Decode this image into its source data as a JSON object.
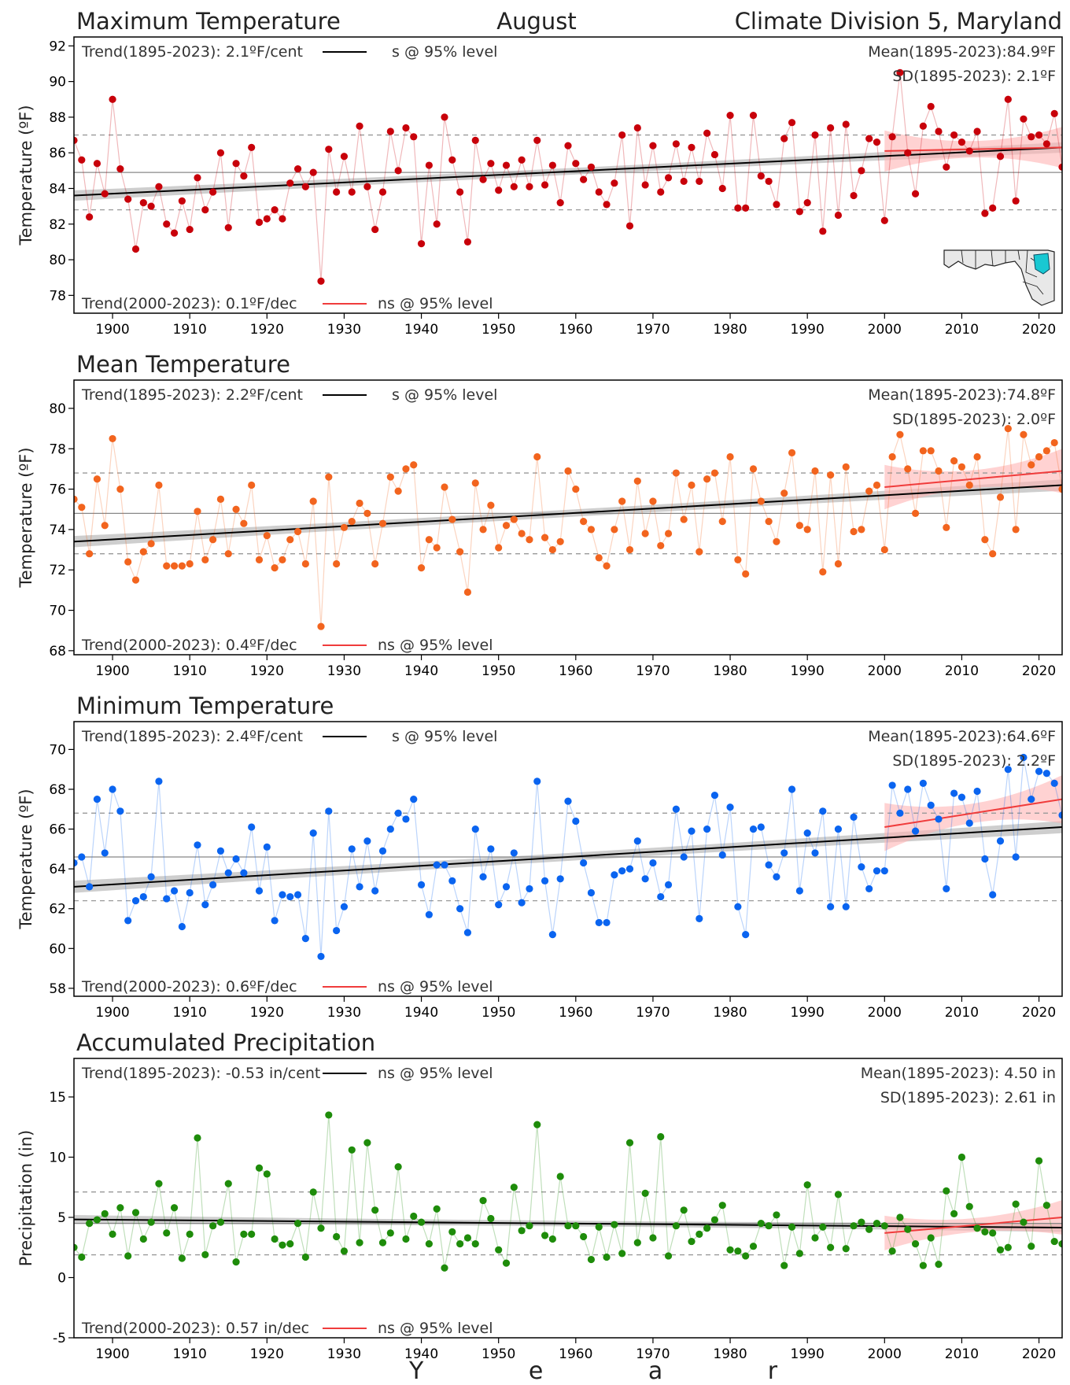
{
  "header": {
    "month": "August",
    "region": "Climate Division 5, Maryland"
  },
  "xaxis_label": "Y e a r",
  "colors": {
    "tmax": "#c8000a",
    "tavg": "#f2641e",
    "tmin": "#0a64f0",
    "pcp": "#1e8c0a",
    "trend_long": "#000000",
    "trend_recent": "#f03c3c",
    "band_long": "#bebebe",
    "band_recent": "#ffb4b4"
  },
  "map": {
    "icon": "maryland-map-icon"
  },
  "chart_data": [
    {
      "id": "tmax",
      "type": "scatter",
      "title": "Maximum Temperature",
      "ylabel": "Temperature (ºF)",
      "xlim": [
        1895,
        2023
      ],
      "ylim": [
        77,
        92.5
      ],
      "yticks": [
        78,
        80,
        82,
        84,
        86,
        88,
        90,
        92
      ],
      "xticks": [
        1900,
        1910,
        1920,
        1930,
        1940,
        1950,
        1960,
        1970,
        1980,
        1990,
        2000,
        2010,
        2020
      ],
      "grid": false,
      "legend": "top-left and bottom-left text lines",
      "mean": 84.9,
      "sd": 2.1,
      "trend_long_text": "Trend(1895-2023):  2.1ºF/cent",
      "trend_long_sig": "s @ 95% level",
      "trend_recent_text": "Trend(2000-2023):  0.1ºF/dec",
      "trend_recent_sig": "ns @ 95% level",
      "mean_text": "Mean(1895-2023):84.9ºF",
      "sd_text": "SD(1895-2023): 2.1ºF",
      "trend_long_line": [
        [
          1895,
          83.6
        ],
        [
          2023,
          86.3
        ]
      ],
      "trend_recent_line": [
        [
          2000,
          86.1
        ],
        [
          2023,
          86.3
        ]
      ],
      "x_start": 1895,
      "values": [
        86.7,
        85.6,
        82.4,
        85.4,
        83.7,
        89.0,
        85.1,
        83.4,
        80.6,
        83.2,
        83.0,
        84.1,
        82.0,
        81.5,
        83.3,
        81.7,
        84.6,
        82.8,
        83.8,
        86.0,
        81.8,
        85.4,
        84.7,
        86.3,
        82.1,
        82.3,
        82.8,
        82.3,
        84.3,
        85.1,
        84.1,
        84.9,
        78.8,
        86.2,
        83.8,
        85.8,
        83.8,
        87.5,
        84.1,
        81.7,
        83.8,
        87.2,
        85.0,
        87.4,
        86.9,
        80.9,
        85.3,
        82.0,
        88.0,
        85.6,
        83.8,
        81.0,
        86.7,
        84.5,
        85.4,
        83.9,
        85.3,
        84.1,
        85.6,
        84.1,
        86.7,
        84.2,
        85.3,
        83.2,
        86.4,
        85.4,
        84.5,
        85.2,
        83.8,
        83.1,
        84.3,
        87.0,
        81.9,
        87.4,
        84.2,
        86.4,
        83.8,
        84.6,
        86.5,
        84.4,
        86.3,
        84.4,
        87.1,
        85.9,
        84.0,
        88.1,
        82.9,
        82.9,
        88.1,
        84.7,
        84.4,
        83.1,
        86.8,
        87.7,
        82.7,
        83.2,
        87.0,
        81.6,
        87.4,
        82.5,
        87.6,
        83.6,
        85.0,
        86.8,
        86.6,
        82.2,
        86.9,
        90.5,
        86.0,
        83.7,
        87.5,
        88.6,
        87.2,
        85.2,
        87.0,
        86.6,
        86.1,
        87.2,
        82.6,
        82.9,
        85.8,
        89.0,
        83.3,
        87.9,
        86.9,
        87.0,
        86.5,
        88.2,
        85.2
      ]
    },
    {
      "id": "tavg",
      "type": "scatter",
      "title": "Mean Temperature",
      "ylabel": "Temperature (ºF)",
      "xlim": [
        1895,
        2023
      ],
      "ylim": [
        67.8,
        81.4
      ],
      "yticks": [
        68,
        70,
        72,
        74,
        76,
        78,
        80
      ],
      "xticks": [
        1900,
        1910,
        1920,
        1930,
        1940,
        1950,
        1960,
        1970,
        1980,
        1990,
        2000,
        2010,
        2020
      ],
      "grid": false,
      "legend": "top-left and bottom-left text lines",
      "mean": 74.8,
      "sd": 2.0,
      "trend_long_text": "Trend(1895-2023):  2.2ºF/cent",
      "trend_long_sig": "s @ 95% level",
      "trend_recent_text": "Trend(2000-2023):  0.4ºF/dec",
      "trend_recent_sig": "ns @ 95% level",
      "mean_text": "Mean(1895-2023):74.8ºF",
      "sd_text": "SD(1895-2023): 2.0ºF",
      "trend_long_line": [
        [
          1895,
          73.4
        ],
        [
          2023,
          76.2
        ]
      ],
      "trend_recent_line": [
        [
          2000,
          76.1
        ],
        [
          2023,
          76.9
        ]
      ],
      "x_start": 1895,
      "values": [
        75.5,
        75.1,
        72.8,
        76.5,
        74.2,
        78.5,
        76.0,
        72.4,
        71.5,
        72.9,
        73.3,
        76.2,
        72.2,
        72.2,
        72.2,
        72.3,
        74.9,
        72.5,
        73.5,
        75.5,
        72.8,
        75.0,
        74.3,
        76.2,
        72.5,
        73.7,
        72.1,
        72.5,
        73.5,
        73.9,
        72.3,
        75.4,
        69.2,
        76.6,
        72.3,
        74.1,
        74.4,
        75.3,
        74.8,
        72.3,
        74.3,
        76.6,
        75.9,
        77.0,
        77.2,
        72.1,
        73.5,
        73.1,
        76.1,
        74.5,
        72.9,
        70.9,
        76.3,
        74.0,
        75.2,
        73.1,
        74.2,
        74.5,
        73.8,
        73.5,
        77.6,
        73.6,
        73.0,
        73.4,
        76.9,
        76.0,
        74.4,
        74.0,
        72.6,
        72.2,
        74.0,
        75.4,
        73.0,
        76.4,
        73.8,
        75.4,
        73.2,
        73.8,
        76.8,
        74.5,
        76.2,
        72.9,
        76.5,
        76.8,
        74.4,
        77.6,
        72.5,
        71.8,
        77.0,
        75.4,
        74.4,
        73.4,
        75.8,
        77.8,
        74.2,
        74.0,
        76.9,
        71.9,
        76.7,
        72.3,
        77.1,
        73.9,
        74.0,
        75.9,
        76.2,
        73.0,
        77.6,
        78.7,
        77.0,
        74.8,
        77.9,
        77.9,
        76.9,
        74.1,
        77.4,
        77.1,
        76.2,
        77.6,
        73.5,
        72.8,
        75.6,
        79.0,
        74.0,
        78.7,
        77.2,
        77.6,
        77.9,
        78.3,
        76.0
      ]
    },
    {
      "id": "tmin",
      "type": "scatter",
      "title": "Minimum Temperature",
      "ylabel": "Temperature (ºF)",
      "xlim": [
        1895,
        2023
      ],
      "ylim": [
        57.6,
        71.4
      ],
      "yticks": [
        58,
        60,
        62,
        64,
        66,
        68,
        70
      ],
      "xticks": [
        1900,
        1910,
        1920,
        1930,
        1940,
        1950,
        1960,
        1970,
        1980,
        1990,
        2000,
        2010,
        2020
      ],
      "grid": false,
      "legend": "top-left and bottom-left text lines",
      "mean": 64.6,
      "sd": 2.2,
      "trend_long_text": "Trend(1895-2023):  2.4ºF/cent",
      "trend_long_sig": "s @ 95% level",
      "trend_recent_text": "Trend(2000-2023):  0.6ºF/dec",
      "trend_recent_sig": "ns @ 95% level",
      "mean_text": "Mean(1895-2023):64.6ºF",
      "sd_text": "SD(1895-2023): 2.2ºF",
      "trend_long_line": [
        [
          1895,
          63.1
        ],
        [
          2023,
          66.1
        ]
      ],
      "trend_recent_line": [
        [
          2000,
          66.1
        ],
        [
          2023,
          67.5
        ]
      ],
      "x_start": 1895,
      "values": [
        64.3,
        64.6,
        63.1,
        67.5,
        64.8,
        68.0,
        66.9,
        61.4,
        62.4,
        62.6,
        63.6,
        68.4,
        62.5,
        62.9,
        61.1,
        62.8,
        65.2,
        62.2,
        63.2,
        64.9,
        63.8,
        64.5,
        63.8,
        66.1,
        62.9,
        65.1,
        61.4,
        62.7,
        62.6,
        62.7,
        60.5,
        65.8,
        59.6,
        66.9,
        60.9,
        62.1,
        65.0,
        63.1,
        65.4,
        62.9,
        64.9,
        66.0,
        66.8,
        66.5,
        67.5,
        63.2,
        61.7,
        64.2,
        64.2,
        63.4,
        62.0,
        60.8,
        66.0,
        63.6,
        65.0,
        62.2,
        63.1,
        64.8,
        62.3,
        63.0,
        68.4,
        63.4,
        60.7,
        63.5,
        67.4,
        66.4,
        64.3,
        62.8,
        61.3,
        61.3,
        63.7,
        63.9,
        64.0,
        65.4,
        63.5,
        64.3,
        62.6,
        63.2,
        67.0,
        64.6,
        65.9,
        61.5,
        66.0,
        67.7,
        64.7,
        67.1,
        62.1,
        60.7,
        66.0,
        66.1,
        64.2,
        63.6,
        64.8,
        68.0,
        62.9,
        65.8,
        64.8,
        66.9,
        62.1,
        66.0,
        62.1,
        66.6,
        64.1,
        63.0,
        63.9,
        63.9,
        68.2,
        66.8,
        68.0,
        65.9,
        68.3,
        67.2,
        66.5,
        63.0,
        67.8,
        67.6,
        66.3,
        67.9,
        64.5,
        62.7,
        65.4,
        69.0,
        64.6,
        69.6,
        67.5,
        68.9,
        68.8,
        68.3,
        66.7
      ]
    },
    {
      "id": "pcp",
      "type": "scatter",
      "title": "Accumulated Precipitation",
      "ylabel": "Precipitation (in)",
      "xlim": [
        1895,
        2023
      ],
      "ylim": [
        -5,
        18.2
      ],
      "yticks": [
        -5,
        0,
        5,
        10,
        15
      ],
      "xticks": [
        1900,
        1910,
        1920,
        1930,
        1940,
        1950,
        1960,
        1970,
        1980,
        1990,
        2000,
        2010,
        2020
      ],
      "grid": false,
      "legend": "top-left and bottom-left text lines",
      "mean": 4.5,
      "sd": 2.61,
      "trend_long_text": "Trend(1895-2023): -0.53 in/cent",
      "trend_long_sig": "ns @ 95% level",
      "trend_recent_text": "Trend(2000-2023):  0.57 in/dec",
      "trend_recent_sig": "ns @ 95% level",
      "mean_text": "Mean(1895-2023): 4.50 in",
      "sd_text": "SD(1895-2023): 2.61 in",
      "trend_long_line": [
        [
          1895,
          4.83
        ],
        [
          2023,
          4.15
        ]
      ],
      "trend_recent_line": [
        [
          2000,
          3.7
        ],
        [
          2023,
          5.0
        ]
      ],
      "x_start": 1895,
      "values": [
        2.5,
        1.7,
        4.5,
        4.8,
        5.3,
        3.6,
        5.8,
        1.8,
        5.4,
        3.2,
        4.6,
        7.8,
        3.7,
        5.8,
        1.6,
        3.6,
        11.6,
        1.9,
        4.3,
        4.6,
        7.8,
        1.3,
        3.6,
        3.6,
        9.1,
        8.6,
        3.2,
        2.7,
        2.8,
        4.5,
        1.7,
        7.1,
        4.1,
        13.5,
        3.4,
        2.2,
        10.6,
        2.9,
        11.2,
        5.6,
        2.9,
        3.7,
        9.2,
        3.2,
        5.1,
        4.6,
        2.8,
        5.7,
        0.8,
        3.8,
        2.8,
        3.3,
        2.8,
        6.4,
        4.9,
        2.3,
        1.2,
        7.5,
        3.9,
        4.3,
        12.7,
        3.5,
        3.2,
        8.4,
        4.3,
        4.3,
        3.4,
        1.5,
        4.2,
        1.7,
        4.4,
        2.0,
        11.2,
        2.9,
        7.0,
        3.3,
        11.7,
        1.8,
        4.3,
        5.6,
        3.0,
        3.6,
        4.1,
        4.8,
        6.0,
        2.3,
        2.2,
        1.8,
        2.6,
        4.5,
        4.3,
        5.2,
        1.0,
        4.2,
        2.0,
        7.7,
        3.3,
        4.2,
        2.5,
        6.9,
        2.4,
        4.3,
        4.6,
        4.0,
        4.5,
        4.3,
        2.2,
        5.0,
        4.0,
        2.8,
        1.0,
        3.3,
        1.1,
        7.2,
        5.3,
        10.0,
        5.9,
        4.1,
        3.8,
        3.7,
        2.3,
        2.5,
        6.1,
        4.6,
        2.6,
        9.7,
        6.0,
        3.0,
        2.8
      ]
    }
  ]
}
